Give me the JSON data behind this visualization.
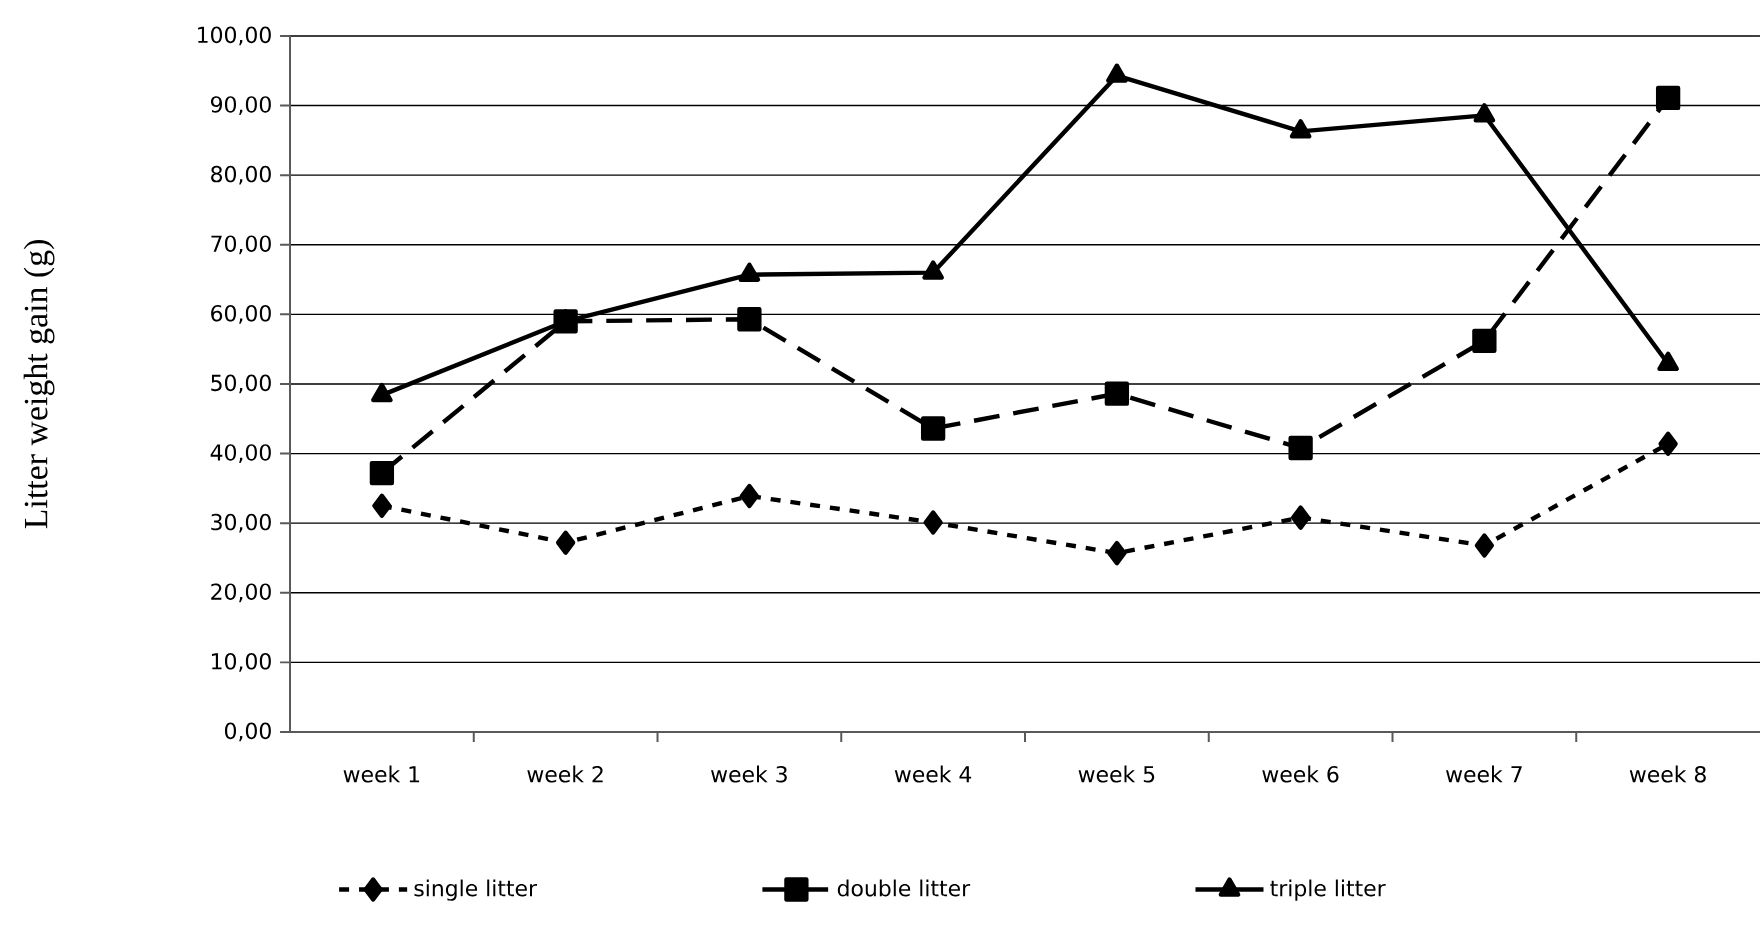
{
  "chart_data": {
    "type": "line",
    "ylabel": "Litter weight gain (g)",
    "categories": [
      "week 1",
      "week 2",
      "week 3",
      "week 4",
      "week 5",
      "week 6",
      "week 7",
      "week 8"
    ],
    "series": [
      {
        "name": "single litter",
        "color": "#000000",
        "marker": "diamond",
        "line_style": "dotted",
        "values": [
          32.5,
          27.2,
          33.9,
          30.1,
          25.7,
          30.8,
          26.8,
          41.4
        ]
      },
      {
        "name": "double litter",
        "color": "#000000",
        "marker": "square",
        "line_style": "dashed",
        "values": [
          37.2,
          59.0,
          59.3,
          43.6,
          48.6,
          40.8,
          56.2,
          91.1
        ]
      },
      {
        "name": "triple litter",
        "color": "#000000",
        "marker": "triangle",
        "line_style": "solid",
        "values": [
          48.4,
          59.0,
          65.7,
          66.0,
          94.3,
          86.3,
          88.6,
          52.9
        ]
      }
    ],
    "ylim": [
      0,
      100
    ],
    "yticks": [
      {
        "value": 0,
        "label": "0,00"
      },
      {
        "value": 10,
        "label": "10,00"
      },
      {
        "value": 20,
        "label": "20,00"
      },
      {
        "value": 30,
        "label": "30,00"
      },
      {
        "value": 40,
        "label": "40,00"
      },
      {
        "value": 50,
        "label": "50,00"
      },
      {
        "value": 60,
        "label": "60,00"
      },
      {
        "value": 70,
        "label": "70,00"
      },
      {
        "value": 80,
        "label": "80,00"
      },
      {
        "value": 90,
        "label": "90,00"
      },
      {
        "value": 100,
        "label": "100,00"
      }
    ],
    "grid": "y",
    "legend": "bottom"
  }
}
